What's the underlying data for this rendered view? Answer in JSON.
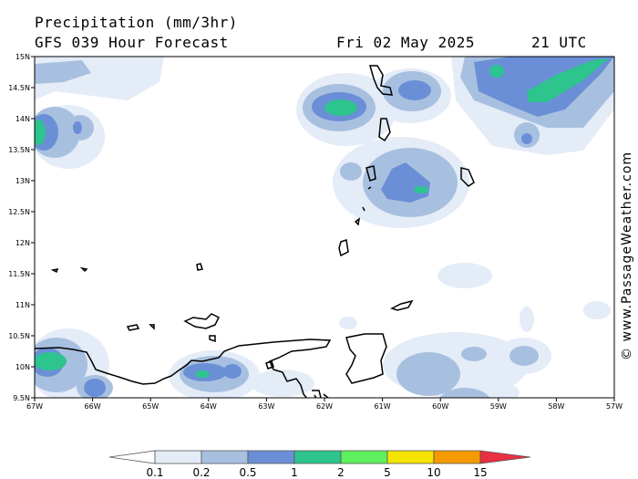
{
  "header": {
    "title": "Precipitation (mm/3hr)",
    "subtitle": "GFS 039 Hour Forecast",
    "date": "Fri 02 May 2025",
    "time": "21 UTC"
  },
  "watermark": "© www.PassageWeather.com",
  "map": {
    "lat_labels": [
      "15N",
      "14.5N",
      "14N",
      "13.5N",
      "13N",
      "12.5N",
      "12N",
      "11.5N",
      "11N",
      "10.5N",
      "10N",
      "9.5N"
    ],
    "lon_labels": [
      "67W",
      "66W",
      "65W",
      "64W",
      "63W",
      "62W",
      "61W",
      "60W",
      "59W",
      "58W",
      "57W"
    ],
    "extent": {
      "lon_min": -67,
      "lon_max": -57,
      "lat_min": 9.5,
      "lat_max": 15
    }
  },
  "legend": {
    "labels": [
      "0.1",
      "0.2",
      "0.5",
      "1",
      "2",
      "5",
      "10",
      "15"
    ],
    "colors": [
      "#ffffff",
      "#e4ecf7",
      "#a8c0e0",
      "#6b8fd6",
      "#2dc48e",
      "#5ef05e",
      "#f5e400",
      "#f59a00",
      "#e83040"
    ]
  },
  "colors": {
    "light": "#e4ecf7",
    "mid": "#a8c0e0",
    "blue": "#6b8fd6",
    "green": "#2dc48e"
  }
}
